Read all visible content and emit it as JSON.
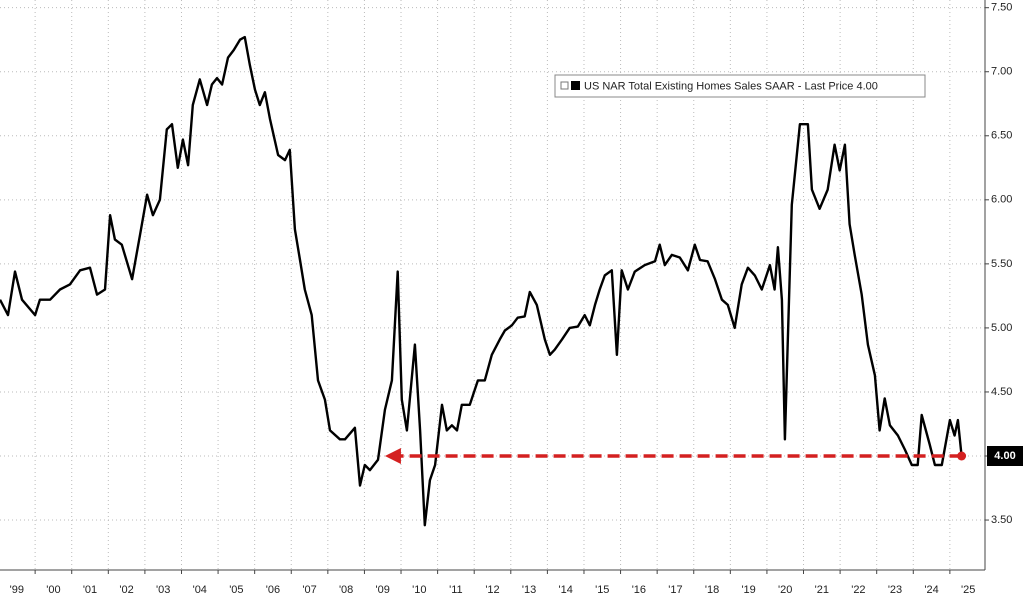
{
  "chart_data": {
    "type": "line",
    "x": [
      1999.04,
      1999.26,
      1999.45,
      1999.64,
      2000.0,
      2000.13,
      2000.41,
      2000.68,
      2000.95,
      2001.23,
      2001.5,
      2001.69,
      2001.91,
      2002.05,
      2002.18,
      2002.37,
      2002.65,
      2002.87,
      2003.06,
      2003.22,
      2003.41,
      2003.6,
      2003.74,
      2003.9,
      2004.04,
      2004.18,
      2004.31,
      2004.5,
      2004.7,
      2004.83,
      2004.97,
      2005.11,
      2005.27,
      2005.43,
      2005.6,
      2005.73,
      2005.87,
      2006.01,
      2006.14,
      2006.28,
      2006.42,
      2006.64,
      2006.83,
      2006.96,
      2007.1,
      2007.24,
      2007.37,
      2007.56,
      2007.73,
      2007.92,
      2008.06,
      2008.33,
      2008.47,
      2008.74,
      2008.88,
      2009.01,
      2009.15,
      2009.37,
      2009.56,
      2009.75,
      2009.91,
      2010.02,
      2010.16,
      2010.38,
      2010.52,
      2010.65,
      2010.79,
      2010.93,
      2011.12,
      2011.25,
      2011.39,
      2011.53,
      2011.66,
      2011.88,
      2012.1,
      2012.29,
      2012.48,
      2012.7,
      2012.84,
      2013.03,
      2013.19,
      2013.38,
      2013.52,
      2013.71,
      2013.93,
      2014.07,
      2014.2,
      2014.4,
      2014.61,
      2014.83,
      2015.02,
      2015.16,
      2015.3,
      2015.43,
      2015.57,
      2015.76,
      2015.9,
      2016.03,
      2016.2,
      2016.39,
      2016.66,
      2016.94,
      2017.07,
      2017.21,
      2017.4,
      2017.62,
      2017.84,
      2018.03,
      2018.17,
      2018.38,
      2018.58,
      2018.77,
      2018.93,
      2019.12,
      2019.31,
      2019.48,
      2019.67,
      2019.86,
      2020.08,
      2020.21,
      2020.3,
      2020.41,
      2020.49,
      2020.68,
      2020.9,
      2021.12,
      2021.23,
      2021.44,
      2021.66,
      2021.85,
      2021.99,
      2022.13,
      2022.26,
      2022.4,
      2022.59,
      2022.76,
      2022.95,
      2023.08,
      2023.22,
      2023.36,
      2023.58,
      2023.77,
      2023.96,
      2024.12,
      2024.23,
      2024.45,
      2024.59,
      2024.78,
      2025.0,
      2025.13,
      2025.22,
      2025.32
    ],
    "series": [
      {
        "name": "US NAR Total Existing Homes Sales SAAR - Last Price 4.00",
        "color": "#000000",
        "values": [
          5.22,
          5.1,
          5.44,
          5.22,
          5.1,
          5.22,
          5.22,
          5.3,
          5.34,
          5.45,
          5.47,
          5.26,
          5.3,
          5.88,
          5.69,
          5.65,
          5.38,
          5.73,
          6.04,
          5.88,
          6.0,
          6.55,
          6.59,
          6.25,
          6.47,
          6.27,
          6.74,
          6.94,
          6.74,
          6.9,
          6.95,
          6.9,
          7.11,
          7.17,
          7.25,
          7.27,
          7.05,
          6.86,
          6.74,
          6.84,
          6.63,
          6.35,
          6.31,
          6.39,
          5.77,
          5.53,
          5.3,
          5.1,
          4.59,
          4.44,
          4.2,
          4.13,
          4.13,
          4.22,
          3.77,
          3.93,
          3.89,
          3.97,
          4.36,
          4.59,
          5.44,
          4.44,
          4.2,
          4.87,
          4.2,
          3.46,
          3.81,
          3.93,
          4.4,
          4.2,
          4.24,
          4.2,
          4.4,
          4.4,
          4.59,
          4.59,
          4.79,
          4.91,
          4.98,
          5.02,
          5.08,
          5.09,
          5.28,
          5.18,
          4.91,
          4.79,
          4.83,
          4.91,
          5.0,
          5.01,
          5.1,
          5.02,
          5.18,
          5.3,
          5.41,
          5.45,
          4.79,
          5.45,
          5.3,
          5.44,
          5.49,
          5.52,
          5.65,
          5.49,
          5.57,
          5.55,
          5.45,
          5.65,
          5.53,
          5.52,
          5.38,
          5.22,
          5.18,
          5.0,
          5.34,
          5.47,
          5.41,
          5.3,
          5.49,
          5.3,
          5.63,
          5.22,
          4.13,
          5.96,
          6.59,
          6.59,
          6.08,
          5.93,
          6.08,
          6.43,
          6.23,
          6.43,
          5.81,
          5.57,
          5.26,
          4.87,
          4.63,
          4.2,
          4.45,
          4.24,
          4.16,
          4.05,
          3.93,
          3.93,
          4.32,
          4.09,
          3.93,
          3.93,
          4.28,
          4.16,
          4.28,
          4.0
        ]
      }
    ],
    "xlim": [
      1999.04,
      2025.96
    ],
    "xticks": [
      {
        "value": 1999,
        "label": "'99"
      },
      {
        "value": 2000,
        "label": "'00"
      },
      {
        "value": 2001,
        "label": "'01"
      },
      {
        "value": 2002,
        "label": "'02"
      },
      {
        "value": 2003,
        "label": "'03"
      },
      {
        "value": 2004,
        "label": "'04"
      },
      {
        "value": 2005,
        "label": "'05"
      },
      {
        "value": 2006,
        "label": "'06"
      },
      {
        "value": 2007,
        "label": "'07"
      },
      {
        "value": 2008,
        "label": "'08"
      },
      {
        "value": 2009,
        "label": "'09"
      },
      {
        "value": 2010,
        "label": "'10"
      },
      {
        "value": 2011,
        "label": "'11"
      },
      {
        "value": 2012,
        "label": "'12"
      },
      {
        "value": 2013,
        "label": "'13"
      },
      {
        "value": 2014,
        "label": "'14"
      },
      {
        "value": 2015,
        "label": "'15"
      },
      {
        "value": 2016,
        "label": "'16"
      },
      {
        "value": 2017,
        "label": "'17"
      },
      {
        "value": 2018,
        "label": "'18"
      },
      {
        "value": 2019,
        "label": "'19"
      },
      {
        "value": 2020,
        "label": "'20"
      },
      {
        "value": 2021,
        "label": "'21"
      },
      {
        "value": 2022,
        "label": "'22"
      },
      {
        "value": 2023,
        "label": "'23"
      },
      {
        "value": 2024,
        "label": "'24"
      },
      {
        "value": 2025,
        "label": "'25"
      }
    ],
    "ylim": [
      3.11,
      7.56
    ],
    "yticks": [
      {
        "value": 3.5,
        "label": "3.50"
      },
      {
        "value": 4,
        "label": "4.00"
      },
      {
        "value": 4.5,
        "label": "4.50"
      },
      {
        "value": 5,
        "label": "5.00"
      },
      {
        "value": 5.5,
        "label": "5.50"
      },
      {
        "value": 6,
        "label": "6.00"
      },
      {
        "value": 6.5,
        "label": "6.50"
      },
      {
        "value": 7,
        "label": "7.00"
      },
      {
        "value": 7.5,
        "label": "7.50"
      }
    ],
    "grid": true,
    "legend": "upper right",
    "arrow": {
      "x_start": 2025.32,
      "x_end": 2009.56,
      "value": 4,
      "label": "4.00",
      "color": "#d42020"
    }
  }
}
